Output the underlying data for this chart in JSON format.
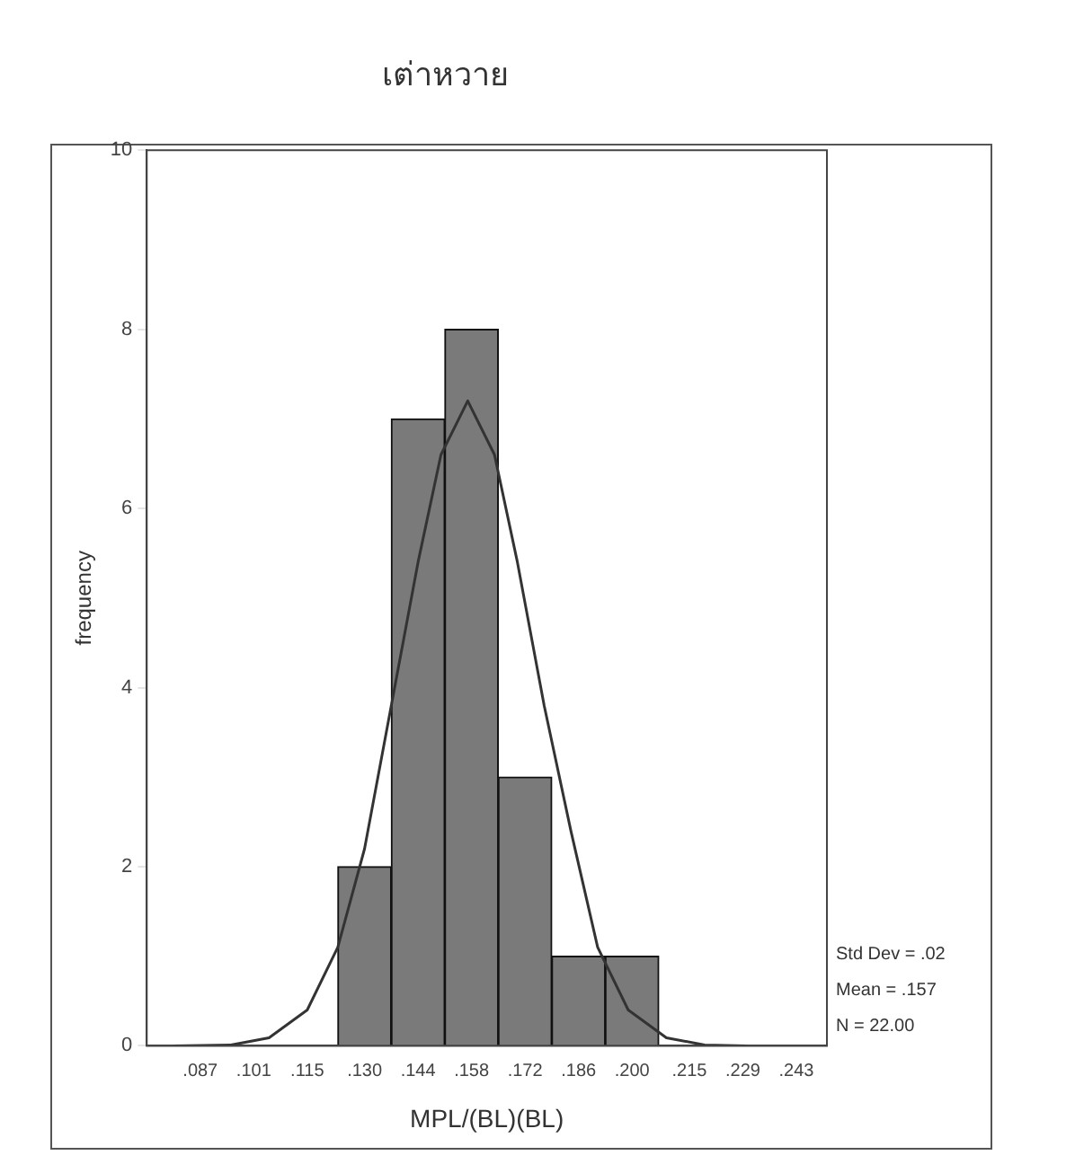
{
  "chart_data": {
    "type": "histogram",
    "title": "เต่าหวาย",
    "xlabel": "MPL/(BL)(BL)",
    "ylabel": "frequency",
    "bins": [
      0.123,
      0.137,
      0.151,
      0.165,
      0.179,
      0.193,
      0.207
    ],
    "values": [
      2,
      7,
      8,
      3,
      1,
      1
    ],
    "color": "#7a7a7a",
    "series": [
      {
        "type": "line",
        "color": "#333333",
        "x": [
          0.08,
          0.095,
          0.105,
          0.115,
          0.123,
          0.13,
          0.137,
          0.144,
          0.15,
          0.157,
          0.164,
          0.17,
          0.177,
          0.184,
          0.191,
          0.199,
          0.209,
          0.219,
          0.23
        ],
        "values": [
          0.0,
          0.01,
          0.09,
          0.4,
          1.1,
          2.2,
          3.8,
          5.4,
          6.6,
          7.2,
          6.6,
          5.4,
          3.8,
          2.4,
          1.1,
          0.4,
          0.09,
          0.01,
          0.0
        ]
      }
    ],
    "xlim": [
      0.073,
      0.251
    ],
    "xticks": [
      {
        "value": 0.087,
        "label": ".087"
      },
      {
        "value": 0.101,
        "label": ".101"
      },
      {
        "value": 0.115,
        "label": ".115"
      },
      {
        "value": 0.13,
        "label": ".130"
      },
      {
        "value": 0.144,
        "label": ".144"
      },
      {
        "value": 0.158,
        "label": ".158"
      },
      {
        "value": 0.172,
        "label": ".172"
      },
      {
        "value": 0.186,
        "label": ".186"
      },
      {
        "value": 0.2,
        "label": ".200"
      },
      {
        "value": 0.215,
        "label": ".215"
      },
      {
        "value": 0.229,
        "label": ".229"
      },
      {
        "value": 0.243,
        "label": ".243"
      }
    ],
    "ylim": [
      0,
      10
    ],
    "yticks": [
      0,
      2,
      4,
      6,
      8,
      10
    ],
    "annotations": [
      "Std Dev = .02",
      "Mean = .157",
      "N = 22.00"
    ],
    "grid": false,
    "legend": false,
    "marker": "none"
  }
}
